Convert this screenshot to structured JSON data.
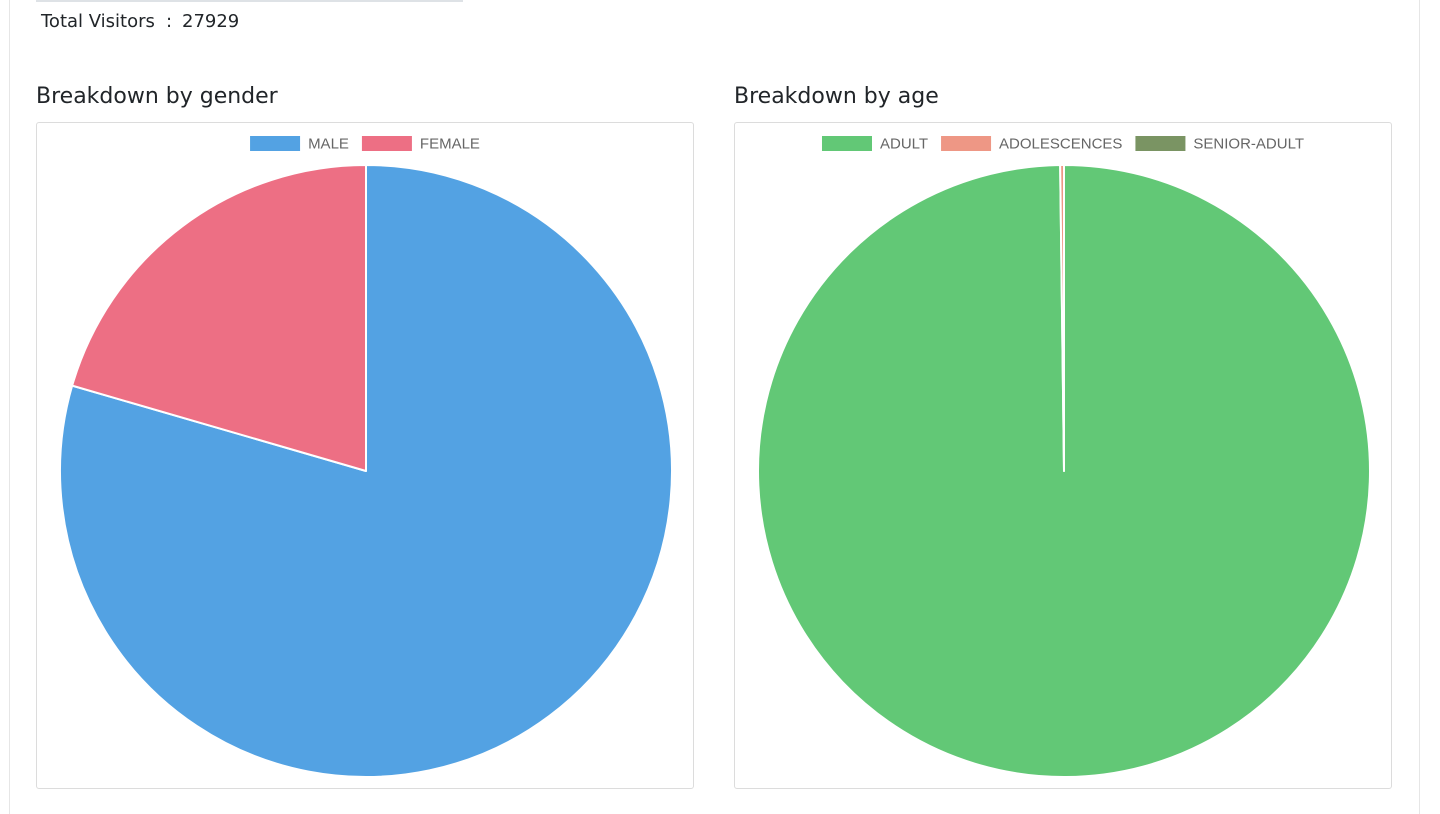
{
  "summary": {
    "total_visitors_label": "Total Visitors",
    "separator": ":",
    "total_visitors_value": "27929"
  },
  "sections": {
    "gender_title": "Breakdown by gender",
    "age_title": "Breakdown by age"
  },
  "chart_data": [
    {
      "type": "pie",
      "title": "Breakdown by gender",
      "categories": [
        "MALE",
        "FEMALE"
      ],
      "values": [
        79.5,
        20.5
      ],
      "colors": [
        "#53a2e3",
        "#ed6f84"
      ],
      "legend": "top"
    },
    {
      "type": "pie",
      "title": "Breakdown by age",
      "categories": [
        "ADULT",
        "ADOLESCENCES",
        "SENIOR-ADULT"
      ],
      "values": [
        99.8,
        0.2,
        0
      ],
      "colors": [
        "#62c876",
        "#ee9785",
        "#7a9463"
      ],
      "legend": "top"
    }
  ]
}
